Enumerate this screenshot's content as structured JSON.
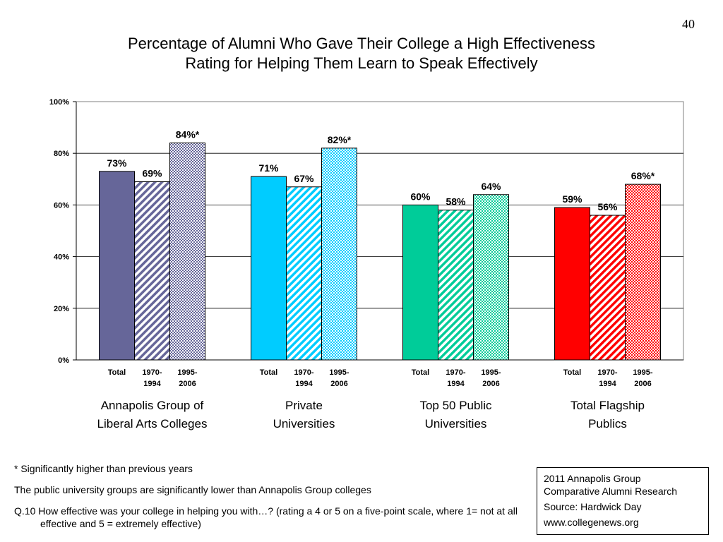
{
  "page_number": "40",
  "title": {
    "line1": "Percentage of Alumni Who Gave Their College a High Effectiveness",
    "line2": "Rating for Helping Them Learn to Speak Effectively"
  },
  "chart_data": {
    "type": "bar",
    "ylim": [
      0,
      100
    ],
    "yticks": [
      0,
      20,
      40,
      60,
      80,
      100
    ],
    "ytick_labels": [
      "0%",
      "20%",
      "40%",
      "60%",
      "80%",
      "100%"
    ],
    "grid": true,
    "groups": [
      {
        "name_lines": [
          "Annapolis Group of",
          "Liberal Arts Colleges"
        ],
        "color": "#666699",
        "bars": [
          {
            "label_lines": [
              "Total"
            ],
            "value": 73,
            "data_label": "73%",
            "pattern": "solid"
          },
          {
            "label_lines": [
              "1970-",
              "1994"
            ],
            "value": 69,
            "data_label": "69%",
            "pattern": "hatch"
          },
          {
            "label_lines": [
              "1995-",
              "2006"
            ],
            "value": 84,
            "data_label": "84%*",
            "pattern": "dots"
          }
        ]
      },
      {
        "name_lines": [
          "Private",
          "Universities"
        ],
        "color": "#00CCFF",
        "bars": [
          {
            "label_lines": [
              "Total"
            ],
            "value": 71,
            "data_label": "71%",
            "pattern": "solid"
          },
          {
            "label_lines": [
              "1970-",
              "1994"
            ],
            "value": 67,
            "data_label": "67%",
            "pattern": "hatch"
          },
          {
            "label_lines": [
              "1995-",
              "2006"
            ],
            "value": 82,
            "data_label": "82%*",
            "pattern": "dots"
          }
        ]
      },
      {
        "name_lines": [
          "Top 50 Public",
          "Universities"
        ],
        "color": "#00CC99",
        "bars": [
          {
            "label_lines": [
              "Total"
            ],
            "value": 60,
            "data_label": "60%",
            "pattern": "solid"
          },
          {
            "label_lines": [
              "1970-",
              "1994"
            ],
            "value": 58,
            "data_label": "58%",
            "pattern": "hatch"
          },
          {
            "label_lines": [
              "1995-",
              "2006"
            ],
            "value": 64,
            "data_label": "64%",
            "pattern": "dots"
          }
        ]
      },
      {
        "name_lines": [
          "Total Flagship",
          "Publics"
        ],
        "color": "#FF0000",
        "bars": [
          {
            "label_lines": [
              "Total"
            ],
            "value": 59,
            "data_label": "59%",
            "pattern": "solid"
          },
          {
            "label_lines": [
              "1970-",
              "1994"
            ],
            "value": 56,
            "data_label": "56%",
            "pattern": "hatch"
          },
          {
            "label_lines": [
              "1995-",
              "2006"
            ],
            "value": 68,
            "data_label": "68%*",
            "pattern": "dots"
          }
        ]
      }
    ]
  },
  "notes": {
    "significance": "* Significantly higher than previous years",
    "public_comparison": "The public university groups are significantly lower than Annapolis Group colleges",
    "question": "Q.10 How effective was your college in helping you with…?  (rating a 4 or 5 on a five-point scale, where 1= not at all effective and 5 = extremely effective)"
  },
  "source_box": {
    "line1": "2011 Annapolis Group",
    "line2": "Comparative Alumni Research",
    "line3": "Source: Hardwick Day",
    "line4": "www.collegenews.org"
  }
}
